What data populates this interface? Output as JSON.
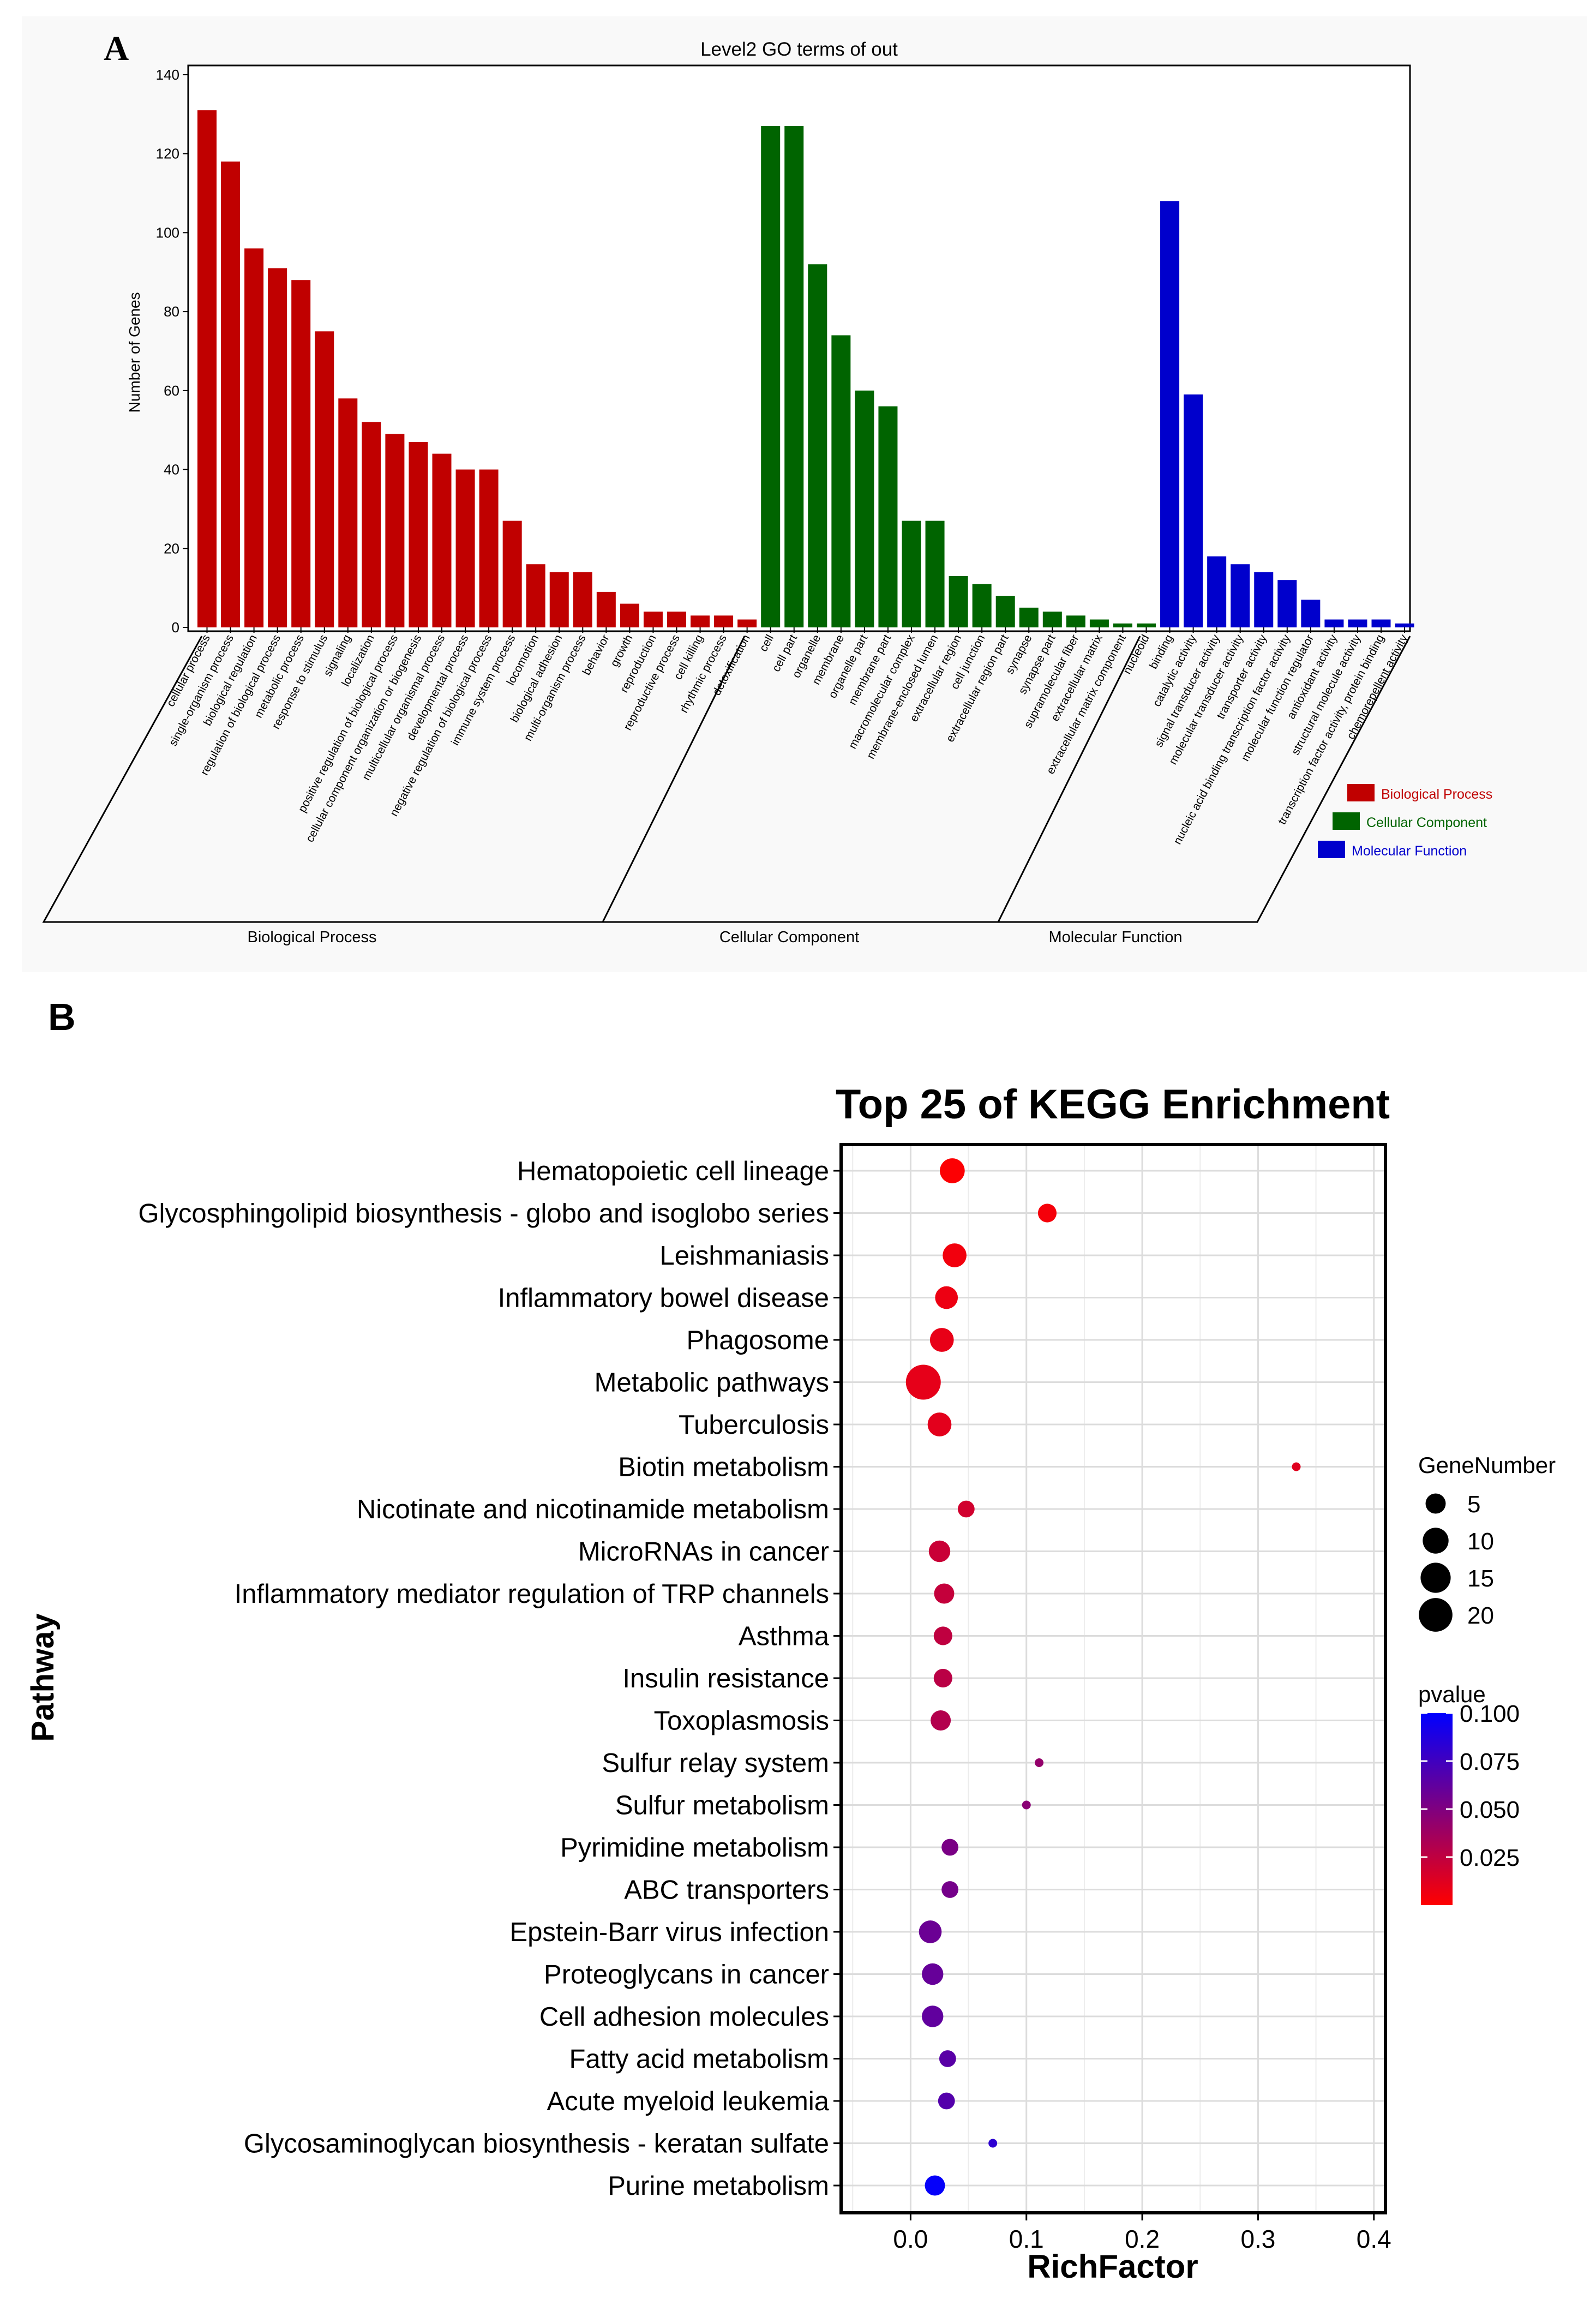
{
  "figure": {
    "panel_a_label": "A",
    "panel_b_label": "B"
  },
  "colors": {
    "bp": "#c00000",
    "cc": "#006400",
    "mf": "#0000cc"
  },
  "chart_data": [
    {
      "id": "go",
      "type": "bar",
      "title": "Level2 GO terms of out",
      "ylabel": "Number of Genes",
      "ylim": [
        0,
        140
      ],
      "yticks": [
        0,
        20,
        40,
        60,
        80,
        100,
        120,
        140
      ],
      "legend": [
        "Biological Process",
        "Cellular Component",
        "Molecular Function"
      ],
      "legend_position": "right",
      "group_labels": [
        "Biological Process",
        "Cellular Component",
        "Molecular Function"
      ],
      "categories": [
        "cellular process",
        "single-organism process",
        "biological regulation",
        "regulation of biological process",
        "metabolic process",
        "response to stimulus",
        "signaling",
        "localization",
        "positive regulation of biological process",
        "cellular component organization or biogenesis",
        "multicellular organismal process",
        "developmental process",
        "negative regulation of biological process",
        "immune system process",
        "locomotion",
        "biological adhesion",
        "multi-organism process",
        "behavior",
        "growth",
        "reproduction",
        "reproductive process",
        "cell killing",
        "rhythmic process",
        "detoxification",
        "cell",
        "cell part",
        "organelle",
        "membrane",
        "organelle part",
        "membrane part",
        "macromolecular complex",
        "membrane-enclosed lumen",
        "extracellular region",
        "cell junction",
        "extracellular region part",
        "synapse",
        "synapse part",
        "supramolecular fiber",
        "extracellular matrix",
        "extracellular matrix component",
        "nucleoid",
        "binding",
        "catalytic activity",
        "signal transducer activity",
        "molecular transducer activity",
        "transporter activity",
        "nucleic acid binding transcription factor activity",
        "molecular function regulator",
        "antioxidant activity",
        "structural molecule activity",
        "transcription factor activity, protein binding",
        "chemorepellent activity"
      ],
      "values": [
        131,
        118,
        96,
        91,
        88,
        75,
        58,
        52,
        49,
        47,
        44,
        40,
        40,
        27,
        16,
        14,
        14,
        9,
        6,
        4,
        4,
        3,
        3,
        2,
        127,
        127,
        92,
        74,
        60,
        56,
        27,
        27,
        13,
        11,
        8,
        5,
        4,
        3,
        2,
        1,
        1,
        108,
        59,
        18,
        16,
        14,
        12,
        7,
        2,
        2,
        2,
        1
      ],
      "groups": [
        "bp",
        "bp",
        "bp",
        "bp",
        "bp",
        "bp",
        "bp",
        "bp",
        "bp",
        "bp",
        "bp",
        "bp",
        "bp",
        "bp",
        "bp",
        "bp",
        "bp",
        "bp",
        "bp",
        "bp",
        "bp",
        "bp",
        "bp",
        "bp",
        "cc",
        "cc",
        "cc",
        "cc",
        "cc",
        "cc",
        "cc",
        "cc",
        "cc",
        "cc",
        "cc",
        "cc",
        "cc",
        "cc",
        "cc",
        "cc",
        "cc",
        "mf",
        "mf",
        "mf",
        "mf",
        "mf",
        "mf",
        "mf",
        "mf",
        "mf",
        "mf",
        "mf"
      ]
    },
    {
      "id": "kegg",
      "type": "scatter",
      "title": "Top 25 of KEGG Enrichment",
      "xlabel": "RichFactor",
      "ylabel": "Pathway",
      "xlim": [
        -0.06,
        0.41
      ],
      "xticks": [
        0.0,
        0.1,
        0.2,
        0.3,
        0.4
      ],
      "xtick_labels": [
        "0.0",
        "0.1",
        "0.2",
        "0.3",
        "0.4"
      ],
      "size_legend": {
        "title": "GeneNumber",
        "values": [
          5,
          10,
          15,
          20
        ],
        "labels": [
          "5",
          "10",
          "15",
          "20"
        ]
      },
      "color_legend": {
        "title": "pvalue",
        "range": [
          0.0,
          0.1
        ],
        "ticks": [
          "0.025",
          "0.050",
          "0.075",
          "0.100"
        ],
        "tick_values": [
          0.025,
          0.05,
          0.075,
          0.1
        ],
        "low_color": "#ff0000",
        "high_color": "#0000ff"
      },
      "pathways": [
        "Hematopoietic cell lineage",
        "Glycosphingolipid biosynthesis - globo and isoglobo series",
        "Leishmaniasis",
        "Inflammatory bowel disease",
        "Phagosome",
        "Metabolic pathways",
        "Tuberculosis",
        "Biotin metabolism",
        "Nicotinate and nicotinamide metabolism",
        "MicroRNAs in cancer",
        "Inflammatory mediator regulation of TRP channels",
        "Asthma",
        "Insulin resistance",
        "Toxoplasmosis",
        "Sulfur relay system",
        "Sulfur metabolism",
        "Pyrimidine metabolism",
        "ABC transporters",
        "Epstein-Barr virus infection",
        "Proteoglycans in cancer",
        "Cell adhesion molecules",
        "Fatty acid metabolism",
        "Acute myeloid leukemia",
        "Glycosaminoglycan biosynthesis - keratan sulfate",
        "Purine metabolism"
      ],
      "richfactor": [
        0.036,
        0.118,
        0.038,
        0.031,
        0.027,
        0.011,
        0.025,
        0.333,
        0.048,
        0.025,
        0.029,
        0.028,
        0.028,
        0.026,
        0.111,
        0.1,
        0.034,
        0.034,
        0.017,
        0.019,
        0.019,
        0.032,
        0.031,
        0.071,
        0.021
      ],
      "gene_number": [
        9,
        4,
        8,
        7,
        8,
        22,
        8,
        1,
        3,
        6,
        5,
        4,
        4,
        5,
        1,
        1,
        3,
        3,
        7,
        6,
        6,
        3,
        3,
        1,
        5
      ],
      "pvalue": [
        0.001,
        0.004,
        0.005,
        0.007,
        0.009,
        0.01,
        0.011,
        0.012,
        0.018,
        0.021,
        0.023,
        0.025,
        0.027,
        0.03,
        0.042,
        0.046,
        0.052,
        0.054,
        0.058,
        0.06,
        0.062,
        0.065,
        0.067,
        0.082,
        0.098
      ]
    }
  ]
}
